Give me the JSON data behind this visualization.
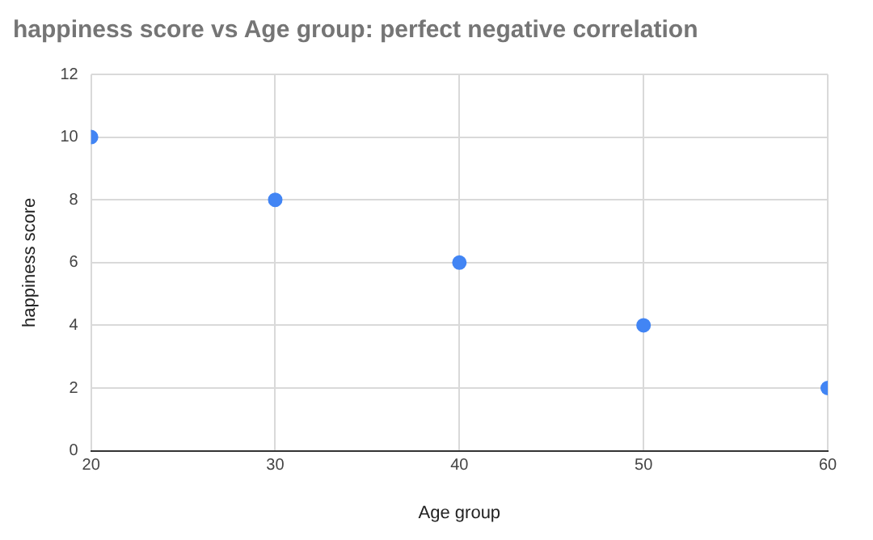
{
  "chart_data": {
    "type": "scatter",
    "title": "happiness score vs Age group: perfect negative correlation",
    "xlabel": "Age group",
    "ylabel": "happiness score",
    "x": [
      20,
      30,
      40,
      50,
      60
    ],
    "series": [
      {
        "color": "#4285f4",
        "values": [
          10,
          8,
          6,
          4,
          2
        ]
      }
    ],
    "xlim": [
      20,
      60
    ],
    "xticks": [
      20,
      30,
      40,
      50,
      60
    ],
    "ylim": [
      0,
      12
    ],
    "yticks": [
      0,
      2,
      4,
      6,
      8,
      10,
      12
    ],
    "grid": true,
    "marker": "circle"
  }
}
